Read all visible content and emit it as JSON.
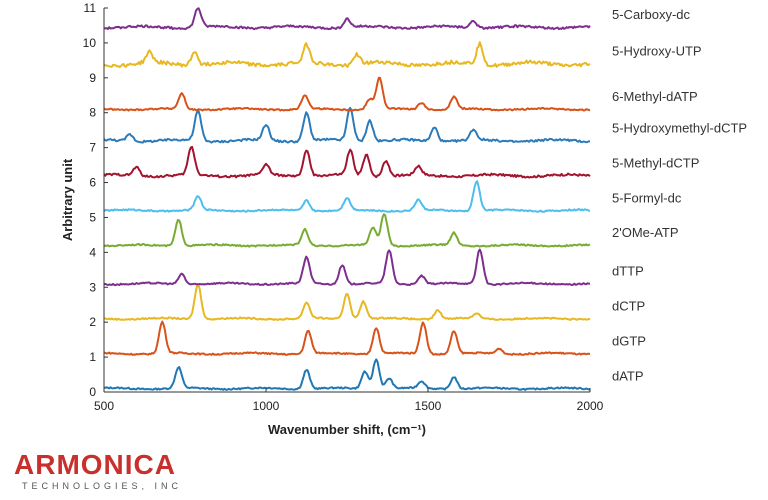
{
  "chart_data": {
    "type": "line",
    "title": "",
    "xlabel": "Wavenumber shift, (cm⁻¹)",
    "ylabel": "Arbitrary unit",
    "xlim": [
      500,
      2000
    ],
    "ylim": [
      0,
      11
    ],
    "x_ticks": [
      "500",
      "1000",
      "1500",
      "2000"
    ],
    "y_ticks": [
      "0",
      "1",
      "2",
      "3",
      "4",
      "5",
      "6",
      "7",
      "8",
      "9",
      "10",
      "11"
    ],
    "grid": false,
    "legend": "labels at right end of each trace",
    "series": [
      {
        "name": "dATP",
        "color": "#1f77b4",
        "baseline": 0.1,
        "noise": 0.02,
        "peaks": [
          [
            730,
            0.6
          ],
          [
            1125,
            0.55
          ],
          [
            1305,
            0.5
          ],
          [
            1340,
            0.85
          ],
          [
            1380,
            0.3
          ],
          [
            1480,
            0.2
          ],
          [
            1580,
            0.35
          ]
        ]
      },
      {
        "name": "dGTP",
        "color": "#d95319",
        "baseline": 1.1,
        "noise": 0.02,
        "peaks": [
          [
            680,
            0.9
          ],
          [
            1130,
            0.65
          ],
          [
            1340,
            0.75
          ],
          [
            1485,
            0.9
          ],
          [
            1580,
            0.65
          ],
          [
            1720,
            0.15
          ]
        ]
      },
      {
        "name": "dCTP",
        "color": "#e8b820",
        "baseline": 2.1,
        "noise": 0.02,
        "peaks": [
          [
            790,
            1.0
          ],
          [
            1125,
            0.45
          ],
          [
            1250,
            0.75
          ],
          [
            1300,
            0.5
          ],
          [
            1530,
            0.25
          ],
          [
            1650,
            0.15
          ]
        ]
      },
      {
        "name": "dTTP",
        "color": "#7e2f8e",
        "baseline": 3.1,
        "noise": 0.02,
        "peaks": [
          [
            740,
            0.3
          ],
          [
            1125,
            0.75
          ],
          [
            1235,
            0.55
          ],
          [
            1380,
            0.95
          ],
          [
            1480,
            0.25
          ],
          [
            1660,
            1.0
          ]
        ]
      },
      {
        "name": "2'OMe-ATP",
        "color": "#77ac30",
        "baseline": 4.2,
        "noise": 0.02,
        "peaks": [
          [
            730,
            0.75
          ],
          [
            1120,
            0.45
          ],
          [
            1330,
            0.5
          ],
          [
            1365,
            0.9
          ],
          [
            1580,
            0.35
          ]
        ]
      },
      {
        "name": "5-Formyl-dc",
        "color": "#4dbeee",
        "baseline": 5.2,
        "noise": 0.02,
        "peaks": [
          [
            790,
            0.4
          ],
          [
            1125,
            0.3
          ],
          [
            1250,
            0.35
          ],
          [
            1470,
            0.3
          ],
          [
            1650,
            0.85
          ]
        ]
      },
      {
        "name": "5-Methyl-dCTP",
        "color": "#a2142f",
        "baseline": 6.2,
        "noise": 0.03,
        "peaks": [
          [
            600,
            0.25
          ],
          [
            770,
            0.8
          ],
          [
            1000,
            0.3
          ],
          [
            1125,
            0.75
          ],
          [
            1260,
            0.7
          ],
          [
            1310,
            0.6
          ],
          [
            1370,
            0.45
          ],
          [
            1470,
            0.25
          ]
        ]
      },
      {
        "name": "5-Hydroxymethyl-dCTP",
        "color": "#2b7bba",
        "baseline": 7.2,
        "noise": 0.03,
        "peaks": [
          [
            580,
            0.2
          ],
          [
            790,
            0.85
          ],
          [
            1000,
            0.45
          ],
          [
            1125,
            0.8
          ],
          [
            1260,
            0.95
          ],
          [
            1320,
            0.6
          ],
          [
            1520,
            0.4
          ],
          [
            1640,
            0.3
          ]
        ]
      },
      {
        "name": "6-Methyl-dATP",
        "color": "#d95319",
        "baseline": 8.1,
        "noise": 0.02,
        "peaks": [
          [
            740,
            0.45
          ],
          [
            1120,
            0.4
          ],
          [
            1320,
            0.3
          ],
          [
            1350,
            0.9
          ],
          [
            1480,
            0.2
          ],
          [
            1580,
            0.35
          ]
        ]
      },
      {
        "name": "5-Hydroxy-UTP",
        "color": "#e8b820",
        "baseline": 9.4,
        "noise": 0.05,
        "peaks": [
          [
            640,
            0.3
          ],
          [
            780,
            0.4
          ],
          [
            1125,
            0.5
          ],
          [
            1280,
            0.3
          ],
          [
            1660,
            0.6
          ]
        ]
      },
      {
        "name": "5-Carboxy-dc",
        "color": "#7e2f8e",
        "baseline": 10.45,
        "noise": 0.03,
        "peaks": [
          [
            790,
            0.55
          ],
          [
            1250,
            0.25
          ],
          [
            1640,
            0.2
          ]
        ]
      }
    ]
  },
  "logo": {
    "text": "ARMONICA",
    "subtitle": "TECHNOLOGIES, INC"
  }
}
